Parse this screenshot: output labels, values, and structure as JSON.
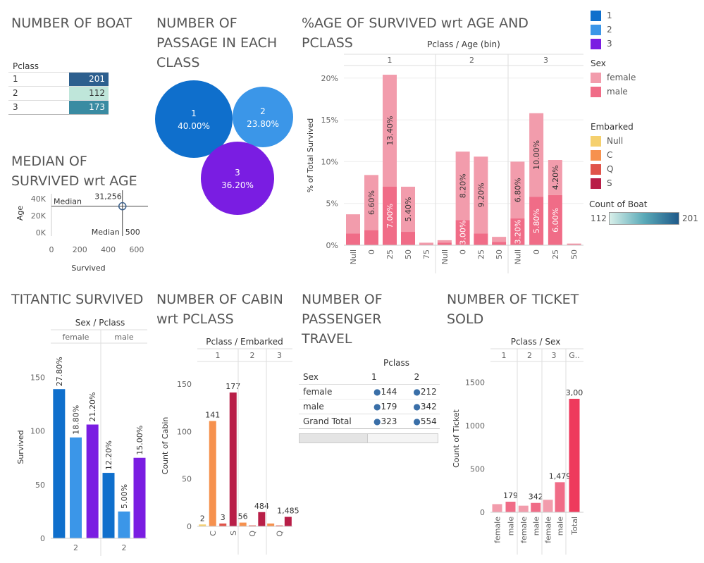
{
  "titles": {
    "boat": "NUMBER OF BOAT",
    "passage": "NUMBER OF PASSAGE IN EACH CLASS",
    "survived_age_pclass": "%AGE OF SURVIVED wrt AGE AND PCLASS",
    "median": "MEDIAN OF SURVIVED wrt AGE",
    "titanic": "TITANTIC SURVIVED",
    "cabin": "NUMBER OF CABIN wrt PCLASS",
    "passenger": "NUMBER OF PASSENGER TRAVEL",
    "ticket": "NUMBER OF TICKET SOLD"
  },
  "legends": {
    "pclass": [
      {
        "label": "1",
        "color": "#0f6fcc"
      },
      {
        "label": "2",
        "color": "#3b96e8"
      },
      {
        "label": "3",
        "color": "#7a1de2"
      }
    ],
    "sex_title": "Sex",
    "sex": [
      {
        "label": "female",
        "color": "#f29cac"
      },
      {
        "label": "male",
        "color": "#f06c87"
      }
    ],
    "embarked_title": "Embarked",
    "embarked": [
      {
        "label": "Null",
        "color": "#f5d06e"
      },
      {
        "label": "C",
        "color": "#f6914e"
      },
      {
        "label": "Q",
        "color": "#e0544a"
      },
      {
        "label": "S",
        "color": "#b81e47"
      }
    ],
    "count_title": "Count of Boat",
    "count_min": "112",
    "count_max": "201"
  },
  "chart_data": [
    {
      "id": "boat",
      "type": "table",
      "header": "Pclass",
      "rows": [
        {
          "label": "1",
          "value": 201,
          "color": "#2d5f8e"
        },
        {
          "label": "2",
          "value": 112,
          "color": "#bfe6da"
        },
        {
          "label": "3",
          "value": 173,
          "color": "#3a8ba2"
        }
      ]
    },
    {
      "id": "passage",
      "type": "pie",
      "categories": [
        "1",
        "2",
        "3"
      ],
      "values": [
        40.0,
        23.8,
        36.2
      ],
      "labels": [
        "40.00%",
        "23.80%",
        "36.20%"
      ],
      "colors": [
        "#0f6fcc",
        "#3b96e8",
        "#7a1de2"
      ]
    },
    {
      "id": "survived_age_pclass",
      "type": "bar",
      "stacked": true,
      "header": "Pclass / Age (bin)",
      "ylabel": "% of Total Survived",
      "yticks": [
        0,
        5,
        10,
        15,
        20
      ],
      "ytick_labels": [
        "0%",
        "5%",
        "10%",
        "15%",
        "20%"
      ],
      "ylim": [
        0,
        21.5
      ],
      "groups": [
        {
          "name": "1",
          "bins": [
            {
              "x": "Null",
              "male": 1.4,
              "female": 2.3
            },
            {
              "x": "0",
              "male": 1.8,
              "female": 6.6,
              "label_female": "6.60%"
            },
            {
              "x": "25",
              "male": 7.0,
              "female": 13.4,
              "label_male": "7.00%",
              "label_female": "13.40%"
            },
            {
              "x": "50",
              "male": 1.6,
              "female": 5.4,
              "label_female": "5.40%"
            },
            {
              "x": "75",
              "male": 0.1,
              "female": 0.2
            }
          ]
        },
        {
          "name": "2",
          "bins": [
            {
              "x": "Null",
              "male": 0.3,
              "female": 0.3
            },
            {
              "x": "0",
              "male": 3.0,
              "female": 8.2,
              "label_male": "3.00%",
              "label_female": "8.20%"
            },
            {
              "x": "25",
              "male": 1.4,
              "female": 9.2,
              "label_female": "9.20%"
            },
            {
              "x": "50",
              "male": 0.4,
              "female": 0.6
            }
          ]
        },
        {
          "name": "3",
          "bins": [
            {
              "x": "Null",
              "male": 3.2,
              "female": 6.8,
              "label_male": "3.20%",
              "label_female": "6.80%"
            },
            {
              "x": "0",
              "male": 5.8,
              "female": 10.0,
              "label_male": "5.80%",
              "label_female": "10.00%"
            },
            {
              "x": "25",
              "male": 6.0,
              "female": 4.2,
              "label_male": "6.00%",
              "label_female": "4.20%"
            },
            {
              "x": "50",
              "male": 0.1,
              "female": 0.1
            }
          ]
        }
      ]
    },
    {
      "id": "median",
      "type": "scatter",
      "xlabel": "Survived",
      "ylabel": "Age",
      "xticks": [
        0,
        200,
        400,
        600
      ],
      "xtick_labels": [
        "0",
        "200",
        "400",
        "600"
      ],
      "yticks": [
        0,
        20000,
        40000
      ],
      "ytick_labels": [
        "0K",
        "20K",
        "40K"
      ],
      "xlim": [
        0,
        680
      ],
      "ylim": [
        0,
        46000
      ],
      "point": {
        "x": 500,
        "y": 31256,
        "label": "31,256"
      },
      "refline_y_label": "Median",
      "refline_x_label": "Median",
      "refline_x_value": "500"
    },
    {
      "id": "titanic",
      "type": "bar",
      "header": "Sex / Pclass",
      "ylabel": "Survived",
      "yticks": [
        0,
        50,
        100,
        150
      ],
      "ytick_labels": [
        "0",
        "50",
        "100",
        "150"
      ],
      "ylim": [
        0,
        170
      ],
      "groups": [
        {
          "name": "female",
          "bottom": "2",
          "bars": [
            {
              "pclass": "1",
              "value": 139,
              "label": "27.80%"
            },
            {
              "pclass": "2",
              "value": 94,
              "label": "18.80%"
            },
            {
              "pclass": "3",
              "value": 106,
              "label": "21.20%"
            }
          ]
        },
        {
          "name": "male",
          "bottom": "2",
          "bars": [
            {
              "pclass": "1",
              "value": 61,
              "label": "12.20%"
            },
            {
              "pclass": "2",
              "value": 25,
              "label": "5.00%"
            },
            {
              "pclass": "3",
              "value": 75,
              "label": "15.00%"
            }
          ]
        }
      ]
    },
    {
      "id": "cabin",
      "type": "bar",
      "header": "Pclass / Embarked",
      "ylabel": "Count of Cabin",
      "yticks": [
        0,
        50,
        100,
        150
      ],
      "ytick_labels": [
        "0",
        "50",
        "100",
        "150"
      ],
      "ylim": [
        0,
        170
      ],
      "groups": [
        {
          "name": "1",
          "bars": [
            {
              "emb": "Null",
              "value": 2,
              "label": "2"
            },
            {
              "emb": "C",
              "value": 111,
              "label": "141",
              "tick": "C"
            },
            {
              "emb": "Q",
              "value": 3,
              "label": "3"
            },
            {
              "emb": "S",
              "value": 141,
              "label": "177",
              "tick": "S"
            }
          ]
        },
        {
          "name": "2",
          "bars": [
            {
              "emb": "C",
              "value": 4,
              "label": "56"
            },
            {
              "emb": "Q",
              "value": 1,
              "tick": "Q"
            },
            {
              "emb": "S",
              "value": 15,
              "label": "484"
            }
          ]
        },
        {
          "name": "3",
          "bars": [
            {
              "emb": "C",
              "value": 3
            },
            {
              "emb": "Q",
              "value": 1,
              "tick": "Q"
            },
            {
              "emb": "S",
              "value": 10,
              "label": "1,485"
            }
          ]
        }
      ]
    },
    {
      "id": "passenger",
      "type": "table",
      "header": "Pclass",
      "row_header": "Sex",
      "columns": [
        "1",
        "2"
      ],
      "rows": [
        {
          "label": "female",
          "values": [
            "144",
            "212"
          ]
        },
        {
          "label": "male",
          "values": [
            "179",
            "342"
          ]
        }
      ],
      "total": {
        "label": "Grand Total",
        "values": [
          "323",
          "554"
        ]
      }
    },
    {
      "id": "ticket",
      "type": "bar",
      "header": "Pclass / Sex",
      "ylabel": "Count of Ticket",
      "yticks": [
        0,
        500,
        1000,
        1500
      ],
      "ytick_labels": [
        "0",
        "500",
        "1000",
        "1500"
      ],
      "ylim": [
        0,
        1700
      ],
      "groups": [
        {
          "name": "1",
          "bars": [
            {
              "x": "female",
              "value": 94
            },
            {
              "x": "male",
              "value": 122,
              "label": "179"
            }
          ]
        },
        {
          "name": "2",
          "bars": [
            {
              "x": "female",
              "value": 76
            },
            {
              "x": "male",
              "value": 108,
              "label": "342"
            }
          ]
        },
        {
          "name": "3",
          "bars": [
            {
              "x": "female",
              "value": 144
            },
            {
              "x": "male",
              "value": 347,
              "label": "1,479"
            }
          ]
        },
        {
          "name": "G..",
          "bars": [
            {
              "x": "Total",
              "value": 1310,
              "label": "3,00",
              "total": true
            }
          ]
        }
      ]
    }
  ]
}
